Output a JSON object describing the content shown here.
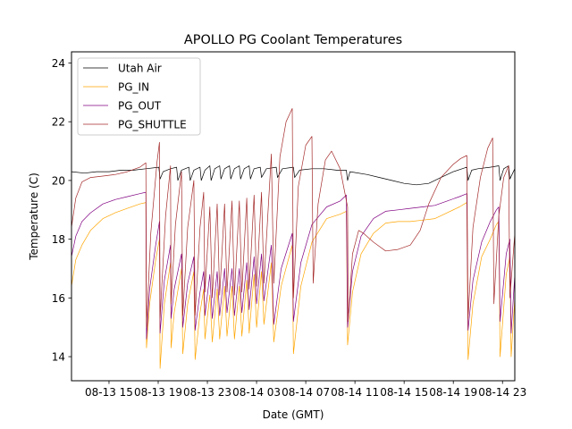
{
  "chart_data": {
    "type": "line",
    "title": "APOLLO PG Coolant Temperatures",
    "xlabel": "Date (GMT)",
    "ylabel": "Temperature (C)",
    "x_units": "hours since 08-13 00:00 GMT",
    "xlim": [
      11.95,
      48.0
    ],
    "ylim": [
      13.18,
      24.38
    ],
    "x_ticks": [
      {
        "value": 15,
        "label": "08-13 15"
      },
      {
        "value": 19,
        "label": "08-13 19"
      },
      {
        "value": 23,
        "label": "08-13 23"
      },
      {
        "value": 27,
        "label": "08-14 03"
      },
      {
        "value": 31,
        "label": "08-14 07"
      },
      {
        "value": 35,
        "label": "08-14 11"
      },
      {
        "value": 39,
        "label": "08-14 15"
      },
      {
        "value": 43,
        "label": "08-14 19"
      },
      {
        "value": 47,
        "label": "08-14 23"
      }
    ],
    "y_ticks": [
      {
        "value": 14,
        "label": "14"
      },
      {
        "value": 16,
        "label": "16"
      },
      {
        "value": 18,
        "label": "18"
      },
      {
        "value": 20,
        "label": "20"
      },
      {
        "value": 22,
        "label": "22"
      },
      {
        "value": 24,
        "label": "24"
      }
    ],
    "grid": false,
    "legend": {
      "placement": "top-left"
    },
    "series": [
      {
        "name": "Utah Air",
        "color": "#000000",
        "points": [
          [
            11.95,
            20.3
          ],
          [
            13,
            20.25
          ],
          [
            14,
            20.3
          ],
          [
            15,
            20.3
          ],
          [
            16,
            20.35
          ],
          [
            17,
            20.35
          ],
          [
            18,
            20.4
          ],
          [
            19.05,
            20.45
          ],
          [
            19.15,
            20.05
          ],
          [
            19.4,
            20.3
          ],
          [
            20,
            20.4
          ],
          [
            20.5,
            20.45
          ],
          [
            20.6,
            20.0
          ],
          [
            20.9,
            20.35
          ],
          [
            21.5,
            20.45
          ],
          [
            21.6,
            20.0
          ],
          [
            21.9,
            20.35
          ],
          [
            22.4,
            20.45
          ],
          [
            22.5,
            20.0
          ],
          [
            22.8,
            20.35
          ],
          [
            23.2,
            20.5
          ],
          [
            23.3,
            20.0
          ],
          [
            23.6,
            20.4
          ],
          [
            24,
            20.5
          ],
          [
            24.1,
            20.05
          ],
          [
            24.4,
            20.4
          ],
          [
            24.8,
            20.5
          ],
          [
            24.9,
            20.05
          ],
          [
            25.2,
            20.4
          ],
          [
            25.6,
            20.5
          ],
          [
            25.7,
            20.05
          ],
          [
            26,
            20.4
          ],
          [
            26.4,
            20.5
          ],
          [
            26.5,
            20.05
          ],
          [
            26.8,
            20.4
          ],
          [
            27.3,
            20.45
          ],
          [
            27.4,
            20.1
          ],
          [
            27.8,
            20.4
          ],
          [
            28.6,
            20.45
          ],
          [
            28.7,
            20.1
          ],
          [
            29.1,
            20.4
          ],
          [
            30,
            20.45
          ],
          [
            30.1,
            20.1
          ],
          [
            30.5,
            20.35
          ],
          [
            31.5,
            20.4
          ],
          [
            32.5,
            20.4
          ],
          [
            33.5,
            20.35
          ],
          [
            34.3,
            20.35
          ],
          [
            34.4,
            20.0
          ],
          [
            34.6,
            20.3
          ],
          [
            36,
            20.2
          ],
          [
            37,
            20.1
          ],
          [
            38,
            20.0
          ],
          [
            39,
            19.9
          ],
          [
            40,
            19.85
          ],
          [
            41,
            19.9
          ],
          [
            42,
            20.1
          ],
          [
            43,
            20.3
          ],
          [
            44.1,
            20.45
          ],
          [
            44.2,
            20.0
          ],
          [
            44.5,
            20.35
          ],
          [
            45,
            20.4
          ],
          [
            46,
            20.45
          ],
          [
            46.7,
            20.5
          ],
          [
            46.8,
            20.0
          ],
          [
            47.1,
            20.4
          ],
          [
            47.5,
            20.5
          ],
          [
            47.6,
            20.05
          ],
          [
            48,
            20.4
          ]
        ]
      },
      {
        "name": "PG_IN",
        "color": "#ffa500",
        "points": [
          [
            11.95,
            16.4
          ],
          [
            12.3,
            17.3
          ],
          [
            12.8,
            17.8
          ],
          [
            13.5,
            18.3
          ],
          [
            14.5,
            18.7
          ],
          [
            15.5,
            18.9
          ],
          [
            16.5,
            19.05
          ],
          [
            17.5,
            19.2
          ],
          [
            18,
            19.25
          ],
          [
            18.05,
            14.3
          ],
          [
            18.3,
            15.8
          ],
          [
            18.8,
            17.3
          ],
          [
            19.1,
            18.0
          ],
          [
            19.15,
            13.6
          ],
          [
            19.5,
            15.8
          ],
          [
            20,
            17.2
          ],
          [
            20.05,
            14.3
          ],
          [
            20.3,
            15.5
          ],
          [
            20.9,
            17.0
          ],
          [
            21,
            14.1
          ],
          [
            21.4,
            15.8
          ],
          [
            21.9,
            16.9
          ],
          [
            22,
            13.9
          ],
          [
            22.4,
            15.5
          ],
          [
            22.7,
            16.3
          ],
          [
            22.8,
            14.6
          ],
          [
            23.2,
            16.1
          ],
          [
            23.4,
            14.5
          ],
          [
            23.8,
            16.3
          ],
          [
            24,
            14.6
          ],
          [
            24.4,
            16.4
          ],
          [
            24.6,
            14.7
          ],
          [
            25,
            16.4
          ],
          [
            25.2,
            14.6
          ],
          [
            25.6,
            16.4
          ],
          [
            25.8,
            14.7
          ],
          [
            26.2,
            16.6
          ],
          [
            26.4,
            14.8
          ],
          [
            26.8,
            16.8
          ],
          [
            27,
            15.0
          ],
          [
            27.4,
            16.9
          ],
          [
            27.6,
            15.1
          ],
          [
            28.2,
            17.2
          ],
          [
            28.4,
            14.5
          ],
          [
            29,
            16.4
          ],
          [
            29.9,
            17.8
          ],
          [
            30,
            14.1
          ],
          [
            30.6,
            16.4
          ],
          [
            31.5,
            17.9
          ],
          [
            32.7,
            18.7
          ],
          [
            33.8,
            18.85
          ],
          [
            34.3,
            18.95
          ],
          [
            34.4,
            14.4
          ],
          [
            34.8,
            16.2
          ],
          [
            35.5,
            17.5
          ],
          [
            36.5,
            18.2
          ],
          [
            37.5,
            18.55
          ],
          [
            38.5,
            18.6
          ],
          [
            39.5,
            18.6
          ],
          [
            40.5,
            18.65
          ],
          [
            41.5,
            18.7
          ],
          [
            42.5,
            18.9
          ],
          [
            43.5,
            19.1
          ],
          [
            44.1,
            19.25
          ],
          [
            44.2,
            13.9
          ],
          [
            44.6,
            15.8
          ],
          [
            45.3,
            17.4
          ],
          [
            46,
            18.0
          ],
          [
            46.5,
            18.5
          ],
          [
            46.7,
            18.6
          ],
          [
            46.8,
            14.0
          ],
          [
            47.3,
            16.8
          ],
          [
            47.6,
            17.4
          ],
          [
            47.7,
            14.0
          ],
          [
            48,
            16.0
          ]
        ]
      },
      {
        "name": "PG_OUT",
        "color": "#800080",
        "points": [
          [
            11.95,
            17.4
          ],
          [
            12.3,
            18.1
          ],
          [
            12.8,
            18.6
          ],
          [
            13.5,
            18.9
          ],
          [
            14.5,
            19.2
          ],
          [
            15.5,
            19.35
          ],
          [
            16.5,
            19.45
          ],
          [
            17.5,
            19.55
          ],
          [
            18,
            19.6
          ],
          [
            18.05,
            14.6
          ],
          [
            18.3,
            16.3
          ],
          [
            18.8,
            17.8
          ],
          [
            19.1,
            18.6
          ],
          [
            19.15,
            14.8
          ],
          [
            19.5,
            16.6
          ],
          [
            20,
            17.8
          ],
          [
            20.05,
            15.3
          ],
          [
            20.3,
            16.3
          ],
          [
            20.9,
            17.5
          ],
          [
            21,
            15.0
          ],
          [
            21.4,
            16.5
          ],
          [
            21.9,
            17.4
          ],
          [
            22,
            14.9
          ],
          [
            22.4,
            16.2
          ],
          [
            22.7,
            16.9
          ],
          [
            22.8,
            15.4
          ],
          [
            23.2,
            16.8
          ],
          [
            23.4,
            15.3
          ],
          [
            23.8,
            16.9
          ],
          [
            24,
            15.4
          ],
          [
            24.4,
            17.0
          ],
          [
            24.6,
            15.5
          ],
          [
            25,
            17.0
          ],
          [
            25.2,
            15.4
          ],
          [
            25.6,
            17.0
          ],
          [
            25.8,
            15.5
          ],
          [
            26.2,
            17.2
          ],
          [
            26.4,
            15.6
          ],
          [
            26.8,
            17.4
          ],
          [
            27,
            15.8
          ],
          [
            27.4,
            17.5
          ],
          [
            27.6,
            15.9
          ],
          [
            28.2,
            17.8
          ],
          [
            28.4,
            15.1
          ],
          [
            29,
            17.0
          ],
          [
            29.9,
            18.2
          ],
          [
            30,
            15.2
          ],
          [
            30.6,
            17.2
          ],
          [
            31.5,
            18.5
          ],
          [
            32.7,
            19.1
          ],
          [
            33.8,
            19.3
          ],
          [
            34.3,
            19.5
          ],
          [
            34.4,
            15.0
          ],
          [
            34.8,
            16.9
          ],
          [
            35.5,
            18.1
          ],
          [
            36.5,
            18.7
          ],
          [
            37.5,
            18.95
          ],
          [
            38.5,
            19.0
          ],
          [
            39.5,
            19.05
          ],
          [
            40.5,
            19.1
          ],
          [
            41.5,
            19.15
          ],
          [
            42.5,
            19.3
          ],
          [
            43.5,
            19.45
          ],
          [
            44.1,
            19.55
          ],
          [
            44.2,
            14.9
          ],
          [
            44.6,
            16.6
          ],
          [
            45.3,
            17.9
          ],
          [
            46,
            18.6
          ],
          [
            46.5,
            19.0
          ],
          [
            46.7,
            19.1
          ],
          [
            46.8,
            15.2
          ],
          [
            47.3,
            17.5
          ],
          [
            47.6,
            18.0
          ],
          [
            47.7,
            14.8
          ],
          [
            48,
            16.8
          ]
        ]
      },
      {
        "name": "PG_SHUTTLE",
        "color": "#a52a2a",
        "points": [
          [
            11.95,
            18.4
          ],
          [
            12.3,
            19.4
          ],
          [
            12.8,
            19.95
          ],
          [
            13.5,
            20.1
          ],
          [
            14.5,
            20.15
          ],
          [
            15.5,
            20.2
          ],
          [
            16.5,
            20.3
          ],
          [
            17.5,
            20.45
          ],
          [
            18,
            20.6
          ],
          [
            18.05,
            15.0
          ],
          [
            18.4,
            18.2
          ],
          [
            18.9,
            20.6
          ],
          [
            19.1,
            21.3
          ],
          [
            19.15,
            15.3
          ],
          [
            19.6,
            18.8
          ],
          [
            20,
            20.5
          ],
          [
            20.05,
            15.8
          ],
          [
            20.4,
            18.5
          ],
          [
            20.9,
            20.3
          ],
          [
            21,
            15.4
          ],
          [
            21.4,
            18.4
          ],
          [
            21.9,
            20.0
          ],
          [
            22,
            15.4
          ],
          [
            22.4,
            18.4
          ],
          [
            22.7,
            19.6
          ],
          [
            22.8,
            16.2
          ],
          [
            23.2,
            19.1
          ],
          [
            23.4,
            16.0
          ],
          [
            23.8,
            19.2
          ],
          [
            24,
            16.1
          ],
          [
            24.4,
            19.2
          ],
          [
            24.6,
            16.2
          ],
          [
            25,
            19.3
          ],
          [
            25.2,
            16.1
          ],
          [
            25.6,
            19.3
          ],
          [
            25.8,
            16.2
          ],
          [
            26.2,
            19.4
          ],
          [
            26.4,
            16.3
          ],
          [
            26.8,
            19.5
          ],
          [
            27,
            16.4
          ],
          [
            27.4,
            19.6
          ],
          [
            27.6,
            16.5
          ],
          [
            28.2,
            20.9
          ],
          [
            28.4,
            16.5
          ],
          [
            28.9,
            20.8
          ],
          [
            29.4,
            22.0
          ],
          [
            29.9,
            22.45
          ],
          [
            30,
            16.0
          ],
          [
            30.4,
            19.8
          ],
          [
            31,
            21.2
          ],
          [
            31.5,
            21.5
          ],
          [
            31.6,
            16.5
          ],
          [
            32.0,
            19.2
          ],
          [
            32.6,
            20.7
          ],
          [
            33.1,
            21.0
          ],
          [
            33.8,
            20.4
          ],
          [
            34.4,
            19.1
          ],
          [
            34.45,
            15.2
          ],
          [
            34.8,
            17.5
          ],
          [
            35.3,
            18.3
          ],
          [
            35.7,
            18.2
          ],
          [
            36.5,
            17.9
          ],
          [
            37.5,
            17.6
          ],
          [
            38.5,
            17.65
          ],
          [
            39.5,
            17.8
          ],
          [
            40.3,
            18.3
          ],
          [
            41.0,
            19.2
          ],
          [
            42.0,
            20.1
          ],
          [
            43.0,
            20.55
          ],
          [
            43.6,
            20.75
          ],
          [
            44.1,
            20.85
          ],
          [
            44.2,
            15.3
          ],
          [
            44.6,
            18.4
          ],
          [
            45.2,
            20.1
          ],
          [
            45.8,
            21.1
          ],
          [
            46.2,
            21.45
          ],
          [
            46.3,
            15.8
          ],
          [
            46.7,
            18.8
          ],
          [
            47.1,
            20.1
          ],
          [
            47.5,
            20.5
          ],
          [
            47.6,
            16.0
          ],
          [
            48,
            18.2
          ]
        ]
      }
    ]
  }
}
